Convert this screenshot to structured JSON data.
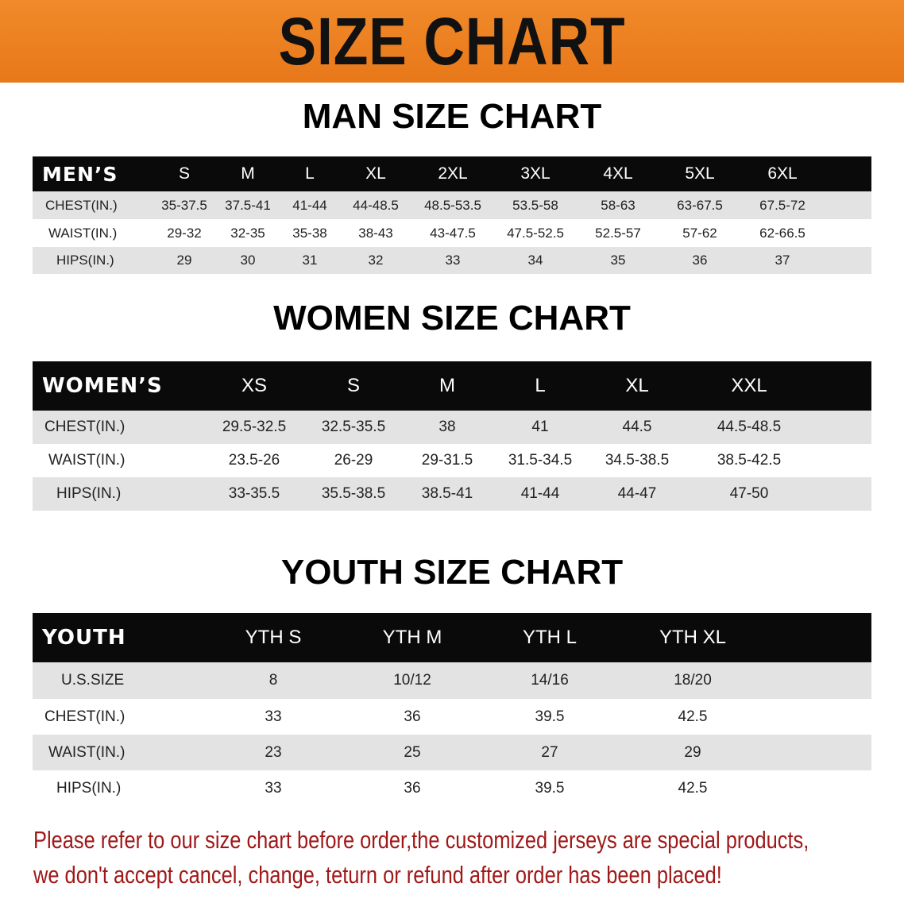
{
  "banner": {
    "title": "SIZE CHART",
    "color": "#ec7f20"
  },
  "men": {
    "title": "MAN SIZE CHART",
    "header_label": "MEN’S",
    "sizes": [
      "S",
      "M",
      "L",
      "XL",
      "2XL",
      "3XL",
      "4XL",
      "5XL",
      "6XL"
    ],
    "rows": [
      {
        "label": "CHEST(IN.)",
        "values": [
          "35-37.5",
          "37.5-41",
          "41-44",
          "44-48.5",
          "48.5-53.5",
          "53.5-58",
          "58-63",
          "63-67.5",
          "67.5-72"
        ]
      },
      {
        "label": "WAIST(IN.)",
        "values": [
          "29-32",
          "32-35",
          "35-38",
          "38-43",
          "43-47.5",
          "47.5-52.5",
          "52.5-57",
          "57-62",
          "62-66.5"
        ]
      },
      {
        "label": "HIPS(IN.)",
        "values": [
          "29",
          "30",
          "31",
          "32",
          "33",
          "34",
          "35",
          "36",
          "37"
        ]
      }
    ]
  },
  "women": {
    "title": "WOMEN SIZE CHART",
    "header_label": "WOMEN’S",
    "sizes": [
      "XS",
      "S",
      "M",
      "L",
      "XL",
      "XXL"
    ],
    "rows": [
      {
        "label": "CHEST(IN.)",
        "values": [
          "29.5-32.5",
          "32.5-35.5",
          "38",
          "41",
          "44.5",
          "44.5-48.5"
        ]
      },
      {
        "label": "WAIST(IN.)",
        "values": [
          "23.5-26",
          "26-29",
          "29-31.5",
          "31.5-34.5",
          "34.5-38.5",
          "38.5-42.5"
        ]
      },
      {
        "label": "HIPS(IN.)",
        "values": [
          "33-35.5",
          "35.5-38.5",
          "38.5-41",
          "41-44",
          "44-47",
          "47-50"
        ]
      }
    ]
  },
  "youth": {
    "title": "YOUTH SIZE CHART",
    "header_label": "YOUTH",
    "sizes": [
      "YTH S",
      "YTH M",
      "YTH L",
      "YTH XL"
    ],
    "rows": [
      {
        "label": "U.S.SIZE",
        "values": [
          "8",
          "10/12",
          "14/16",
          "18/20"
        ]
      },
      {
        "label": "CHEST(IN.)",
        "values": [
          "33",
          "36",
          "39.5",
          "42.5"
        ]
      },
      {
        "label": "WAIST(IN.)",
        "values": [
          "23",
          "25",
          "27",
          "29"
        ]
      },
      {
        "label": "HIPS(IN.)",
        "values": [
          "33",
          "36",
          "39.5",
          "42.5"
        ]
      }
    ]
  },
  "notice": {
    "line1": "Please refer to our size chart before order,the customized jerseys are special products,",
    "line2": "we don't accept cancel, change, teturn or refund after order has been placed!",
    "color": "#a01818"
  }
}
